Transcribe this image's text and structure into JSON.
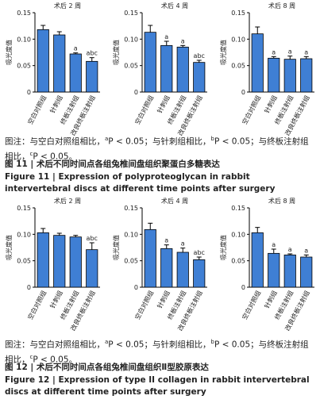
{
  "chart_data": [
    {
      "type": "bar",
      "title": "术后 2 周",
      "ylabel": "吸光度值",
      "categories": [
        "空白对照组",
        "针刺组",
        "终板注射组",
        "改良终板注射组"
      ],
      "values": [
        0.118,
        0.108,
        0.072,
        0.058
      ],
      "errors": [
        0.008,
        0.006,
        0.002,
        0.007
      ],
      "bar_labels": [
        null,
        null,
        "a",
        "abc"
      ],
      "color": "#3f7fd4",
      "ylim": [
        0,
        0.15
      ],
      "yticks": [
        0,
        0.05,
        {
          "value": 0.1,
          "label": "0.10"
        },
        0.15
      ]
    },
    {
      "type": "bar",
      "title": "术后 4 周",
      "ylabel": "吸光度值",
      "categories": [
        "空白对照组",
        "针刺组",
        "终板注射组",
        "改良终板注射组"
      ],
      "values": [
        0.113,
        0.088,
        0.085,
        0.056
      ],
      "errors": [
        0.013,
        0.008,
        0.003,
        0.004
      ],
      "bar_labels": [
        null,
        "a",
        "a",
        "abc"
      ],
      "color": "#3f7fd4",
      "ylim": [
        0,
        0.15
      ],
      "yticks": [
        0,
        0.05,
        {
          "value": 0.1,
          "label": "0.10"
        },
        0.15
      ]
    },
    {
      "type": "bar",
      "title": "术后 8 周",
      "ylabel": "吸光度值",
      "categories": [
        "空白对照组",
        "针刺组",
        "终板注射组",
        "改良终板注射组"
      ],
      "values": [
        0.11,
        0.064,
        0.062,
        0.063
      ],
      "errors": [
        0.013,
        0.003,
        0.006,
        0.004
      ],
      "bar_labels": [
        null,
        "a",
        "a",
        "a"
      ],
      "color": "#3f7fd4",
      "ylim": [
        0,
        0.15
      ],
      "yticks": [
        0,
        0.05,
        {
          "value": 0.1,
          "label": "0.10"
        },
        0.15
      ]
    },
    {
      "type": "bar",
      "title": "术后 2 周",
      "ylabel": "吸光度值",
      "categories": [
        "空白对照组",
        "针刺组",
        "终板注射组",
        "改良终板注射组"
      ],
      "values": [
        0.103,
        0.098,
        0.095,
        0.071
      ],
      "errors": [
        0.008,
        0.004,
        0.003,
        0.013
      ],
      "bar_labels": [
        null,
        null,
        null,
        "abc"
      ],
      "color": "#3f7fd4",
      "ylim": [
        0,
        0.15
      ],
      "yticks": [
        0,
        0.05,
        {
          "value": 0.1,
          "label": "0.10"
        },
        0.15
      ]
    },
    {
      "type": "bar",
      "title": "术后 4 周",
      "ylabel": "吸光度值",
      "categories": [
        "空白对照组",
        "针刺组",
        "终板注射组",
        "改良终板注射组"
      ],
      "values": [
        0.109,
        0.073,
        0.066,
        0.052
      ],
      "errors": [
        0.012,
        0.007,
        0.008,
        0.005
      ],
      "bar_labels": [
        null,
        "a",
        "a",
        "abc"
      ],
      "color": "#3f7fd4",
      "ylim": [
        0,
        0.15
      ],
      "yticks": [
        0,
        0.05,
        {
          "value": 0.1,
          "label": "0.10"
        },
        0.15
      ]
    },
    {
      "type": "bar",
      "title": "术后 8 周",
      "ylabel": "吸光度值",
      "categories": [
        "空白对照组",
        "针刺组",
        "终板注射组",
        "改良终板注射组"
      ],
      "values": [
        0.103,
        0.064,
        0.061,
        0.057
      ],
      "errors": [
        0.01,
        0.008,
        0.002,
        0.004
      ],
      "bar_labels": [
        null,
        "a",
        "a",
        "a"
      ],
      "color": "#3f7fd4",
      "ylim": [
        0,
        0.15
      ],
      "yticks": [
        0,
        0.05,
        {
          "value": 0.1,
          "label": "0.10"
        },
        0.15
      ]
    }
  ],
  "figures": [
    {
      "note": [
        "图注：与空白对照组相比，",
        "a",
        "P < 0.05；与针刺组相比，",
        "b",
        "P < 0.05；与终板注射组相比，",
        "c",
        "P < 0.05。"
      ],
      "title_cn": "图 11 | 术后不同时间点各组兔椎间盘组织聚蛋白多糖表达",
      "title_en": "Figure 11 | Expression of polyproteoglycan in rabbit intervertebral discs at different time points after surgery"
    },
    {
      "note": [
        "图注：与空白对照组相比，",
        "a",
        "P < 0.05；与针刺组相比，",
        "b",
        "P < 0.05；与终板注射组相比，",
        "c",
        "P < 0.05。"
      ],
      "title_cn": "图 12 | 术后不同时间点各组兔椎间盘组织Ⅱ型胶原表达",
      "title_en": "Figure 12 | Expression of type II collagen in rabbit intervertebral discs at different time points after surgery"
    }
  ]
}
